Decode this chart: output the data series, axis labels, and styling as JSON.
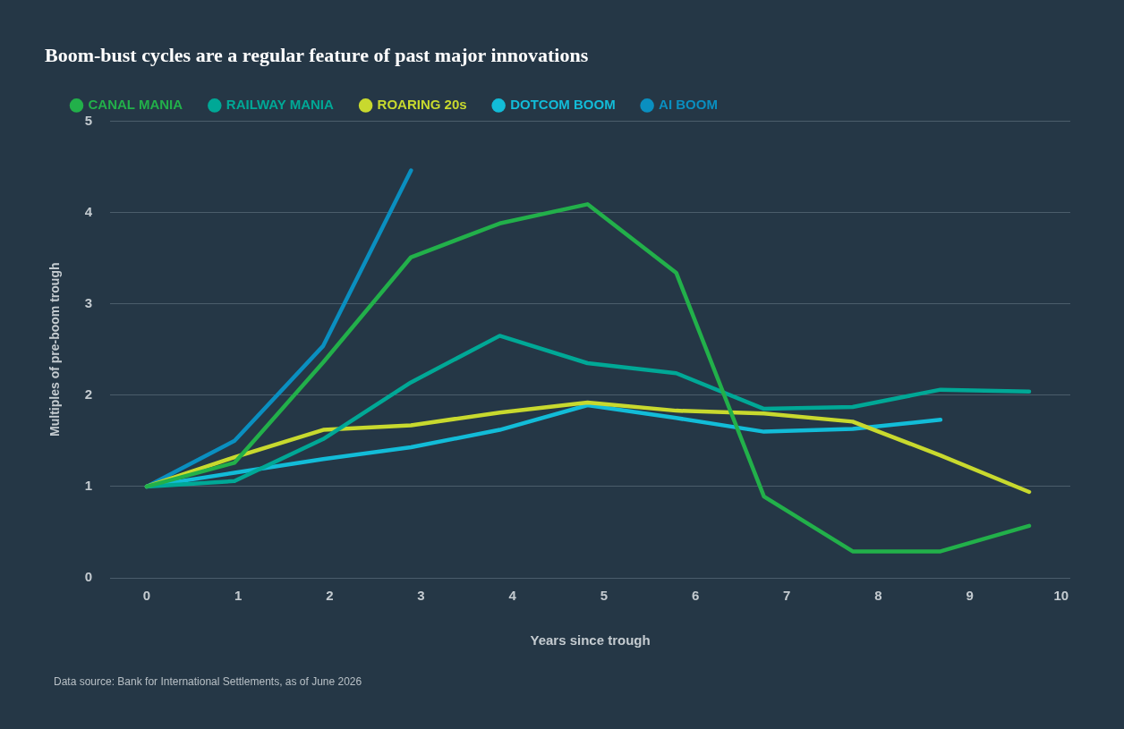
{
  "chart_data": {
    "type": "line",
    "title": "Boom-bust cycles are a regular feature of past major innovations",
    "xlabel": "Years since trough",
    "ylabel": "Multiples of pre-boom trough",
    "x": [
      0,
      0.96,
      1.93,
      2.89,
      3.86,
      4.82,
      5.79,
      6.75,
      7.72,
      8.68,
      9.65
    ],
    "series": [
      {
        "name": "CANAL MANIA",
        "color": "#22b04a",
        "values": [
          1.0,
          1.26,
          2.36,
          3.51,
          3.88,
          4.09,
          3.34,
          0.89,
          0.29,
          0.29,
          0.57
        ]
      },
      {
        "name": "RAILWAY MANIA",
        "color": "#00a896",
        "values": [
          1.0,
          1.06,
          1.52,
          2.14,
          2.65,
          2.35,
          2.24,
          1.85,
          1.87,
          2.06,
          2.04
        ]
      },
      {
        "name": "ROARING 20s",
        "color": "#c8d92e",
        "values": [
          1.0,
          1.32,
          1.62,
          1.67,
          1.81,
          1.92,
          1.83,
          1.8,
          1.71,
          1.34,
          0.94
        ]
      },
      {
        "name": "DOTCOM BOOM",
        "color": "#12bcd8",
        "values": [
          1.0,
          1.15,
          1.3,
          1.43,
          1.62,
          1.89,
          1.75,
          1.6,
          1.63,
          1.73,
          null
        ]
      },
      {
        "name": "AI BOOM",
        "color": "#0a8fc0",
        "values": [
          1.0,
          1.5,
          2.54,
          4.46,
          null,
          null,
          null,
          null,
          null,
          null,
          null
        ]
      }
    ],
    "xlim": [
      -0.4,
      10.1
    ],
    "xticks": [
      0,
      1,
      2,
      3,
      4,
      5,
      6,
      7,
      8,
      9,
      10
    ],
    "ylim": [
      0,
      5
    ],
    "yticks": [
      0,
      1,
      2,
      3,
      4,
      5
    ],
    "grid": "y",
    "legend": "top left",
    "marker": "none",
    "line_style": "solid",
    "annotations": [
      "Data source: Bank for International Settlements, as of June 2026"
    ]
  }
}
